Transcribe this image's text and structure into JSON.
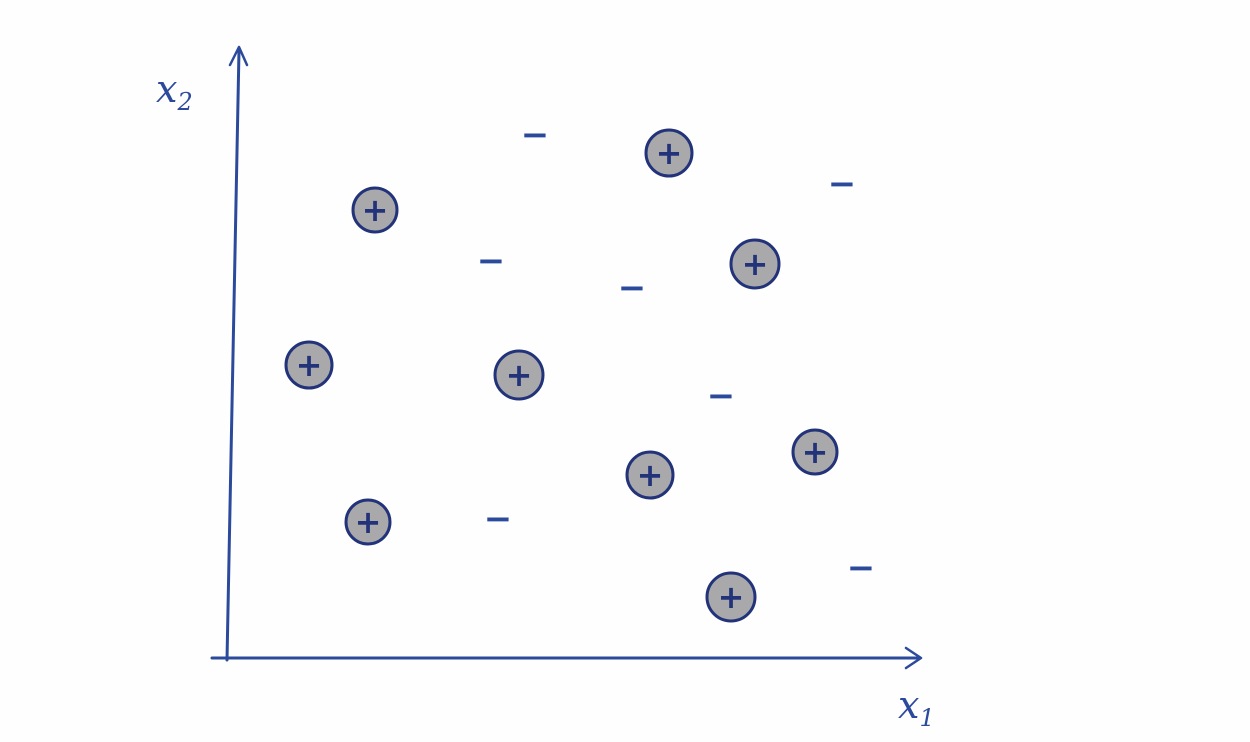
{
  "colors": {
    "ink": "#2c4a9c",
    "marker_fill": "#a9a9ab",
    "marker_outline": "#23337a",
    "paper": "#fefefe"
  },
  "axes": {
    "x_label": {
      "letter": "x",
      "subscript": "1"
    },
    "y_label": {
      "letter": "x",
      "subscript": "2"
    }
  },
  "points": [
    {
      "class": "positive",
      "symbol": "+",
      "x1": 1.47,
      "x2": 4.48
    },
    {
      "class": "positive",
      "symbol": "+",
      "x1": 0.81,
      "x2": 2.93
    },
    {
      "class": "positive",
      "symbol": "+",
      "x1": 2.91,
      "x2": 2.83
    },
    {
      "class": "positive",
      "symbol": "+",
      "x1": 1.4,
      "x2": 1.36
    },
    {
      "class": "positive",
      "symbol": "+",
      "x1": 4.41,
      "x2": 5.05
    },
    {
      "class": "positive",
      "symbol": "+",
      "x1": 5.27,
      "x2": 3.94
    },
    {
      "class": "positive",
      "symbol": "+",
      "x1": 5.87,
      "x2": 2.06
    },
    {
      "class": "positive",
      "symbol": "+",
      "x1": 4.22,
      "x2": 1.83
    },
    {
      "class": "positive",
      "symbol": "+",
      "x1": 5.03,
      "x2": 0.61
    },
    {
      "class": "negative",
      "symbol": "−",
      "x1": 3.07,
      "x2": 5.22
    },
    {
      "class": "negative",
      "symbol": "−",
      "x1": 2.63,
      "x2": 3.96
    },
    {
      "class": "negative",
      "symbol": "−",
      "x1": 4.04,
      "x2": 3.69
    },
    {
      "class": "negative",
      "symbol": "−",
      "x1": 6.14,
      "x2": 4.73
    },
    {
      "class": "negative",
      "symbol": "−",
      "x1": 4.93,
      "x2": 2.61
    },
    {
      "class": "negative",
      "symbol": "−",
      "x1": 2.7,
      "x2": 1.38
    },
    {
      "class": "negative",
      "symbol": "−",
      "x1": 6.33,
      "x2": 0.89
    }
  ]
}
